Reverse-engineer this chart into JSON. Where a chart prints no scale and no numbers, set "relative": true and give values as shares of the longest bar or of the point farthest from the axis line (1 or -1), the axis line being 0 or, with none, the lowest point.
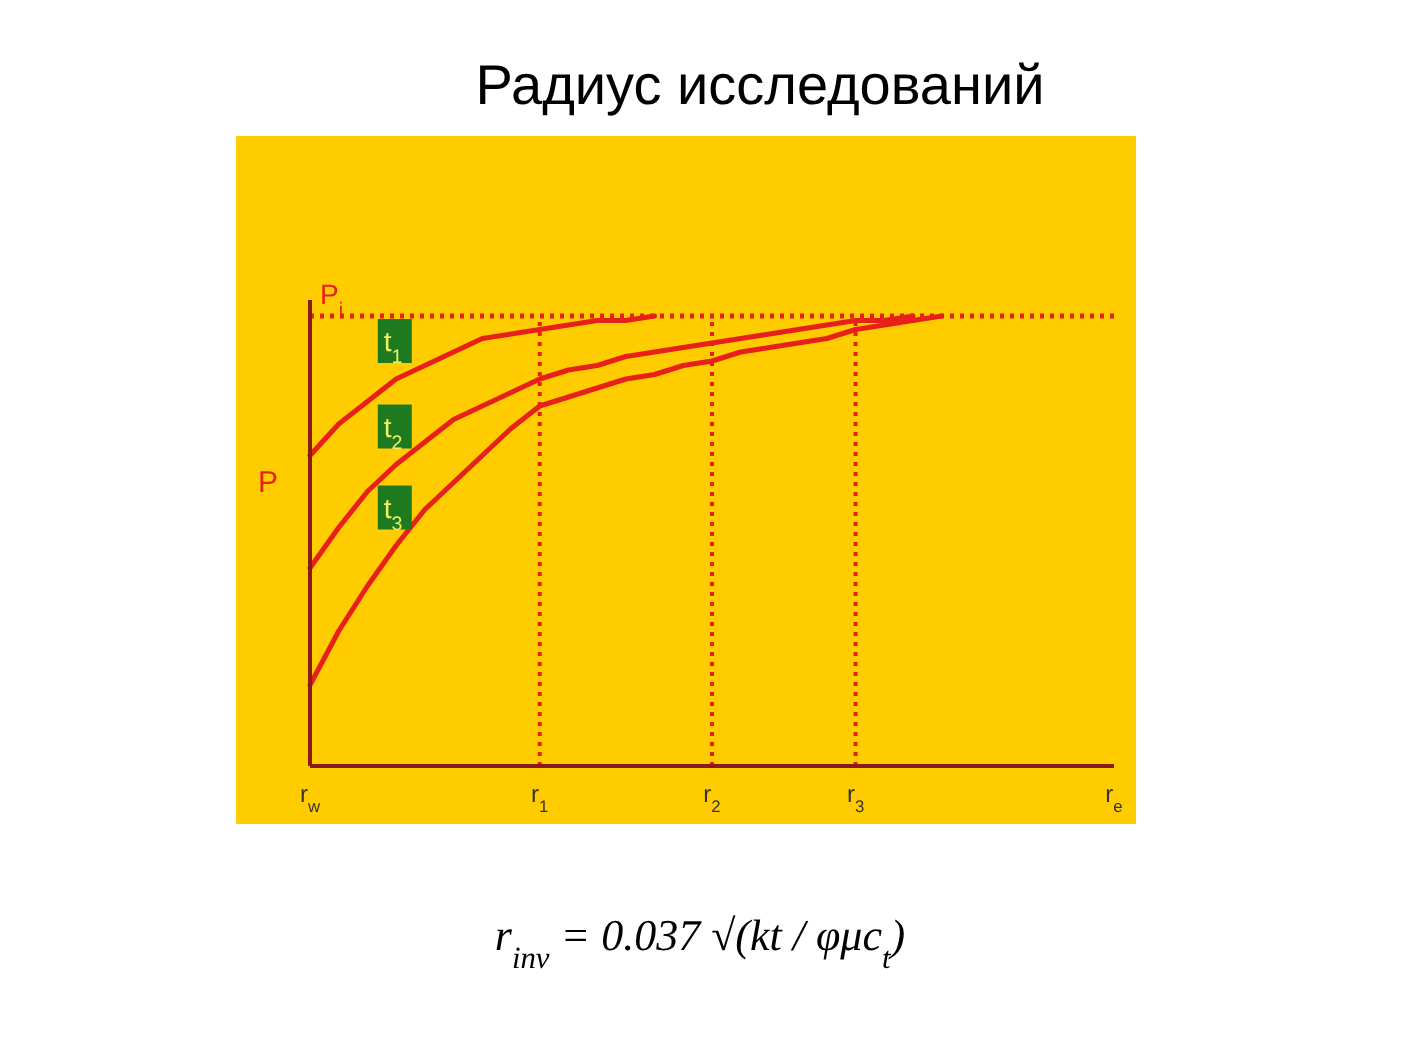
{
  "chart_data": {
    "type": "line",
    "title": "Радиус исследований",
    "ylabel": "P",
    "relative": true,
    "tick_labels": "x",
    "categories": [
      "r$_{w}$",
      null,
      null,
      null,
      null,
      null,
      null,
      null,
      "r$_{1}$",
      null,
      null,
      null,
      null,
      null,
      "r$_{2}$",
      null,
      null,
      null,
      null,
      "r$_{3}$",
      null,
      null,
      null,
      null,
      null,
      null,
      null,
      null,
      "r$_{e}$"
    ],
    "series": [
      {
        "name": "t$_{1}$",
        "color": "#e8201a",
        "values": [
          0.69,
          0.76,
          0.81,
          0.86,
          0.89,
          0.92,
          0.95,
          0.96,
          0.97,
          0.98,
          0.99,
          0.99,
          1,
          null,
          null,
          null,
          null,
          null,
          null,
          null,
          null,
          null,
          null,
          null,
          null,
          null,
          null,
          null,
          null
        ]
      },
      {
        "name": "t$_{2}$",
        "color": "#e8201a",
        "values": [
          0.44,
          0.53,
          0.61,
          0.67,
          0.72,
          0.77,
          0.8,
          0.83,
          0.86,
          0.88,
          0.89,
          0.91,
          0.92,
          0.93,
          0.94,
          0.95,
          0.96,
          0.97,
          0.98,
          0.99,
          0.99,
          1,
          null,
          null,
          null,
          null,
          null,
          null,
          null
        ]
      },
      {
        "name": "t$_{3}$",
        "color": "#e8201a",
        "values": [
          0.18,
          0.3,
          0.4,
          0.49,
          0.57,
          0.63,
          0.69,
          0.75,
          0.8,
          0.82,
          0.84,
          0.86,
          0.87,
          0.89,
          0.9,
          0.92,
          0.93,
          0.94,
          0.95,
          0.97,
          0.98,
          0.99,
          1,
          null,
          null,
          null,
          null,
          null,
          null
        ]
      }
    ],
    "ref_lines": [
      {
        "axis": "y",
        "value": 1,
        "label": "P$_{i}$",
        "color": "#e8201a",
        "line_style": "dotted"
      },
      {
        "axis": "x",
        "value": "r$_{1}$",
        "label": null,
        "color": "#e8201a",
        "line_style": "dotted"
      },
      {
        "axis": "x",
        "value": "r$_{2}$",
        "label": null,
        "color": "#e8201a",
        "line_style": "dotted"
      },
      {
        "axis": "x",
        "value": "r$_{3}$",
        "label": null,
        "color": "#e8201a",
        "line_style": "dotted"
      }
    ],
    "annotations": [
      "r$_{inv}$ = 0.037 √(kt / φμc$_{t}$)"
    ]
  }
}
